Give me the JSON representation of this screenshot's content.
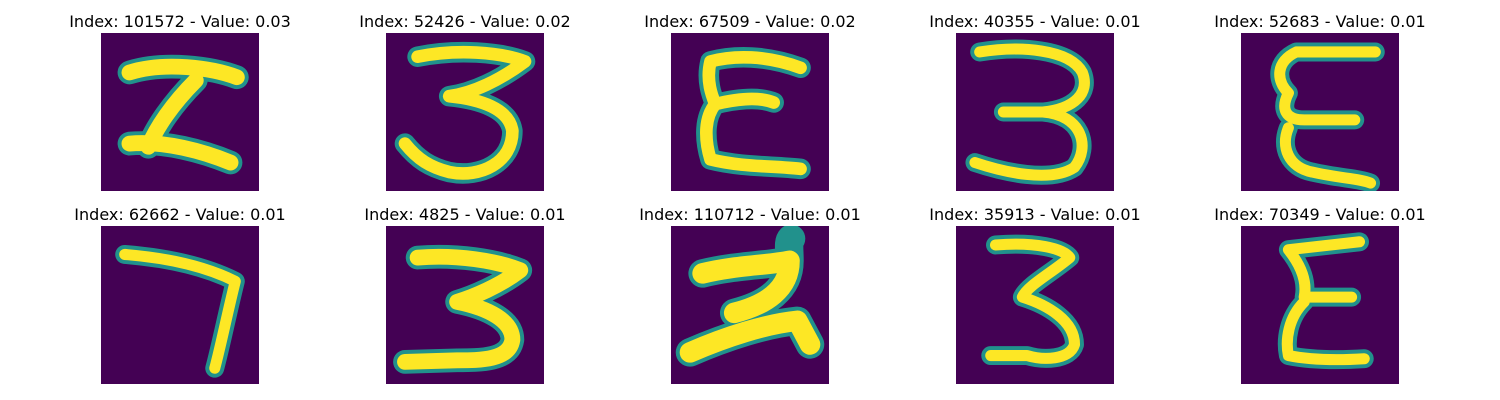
{
  "figure": {
    "colormap": "viridis",
    "background_color": "#440154",
    "stroke_color": "#fde725",
    "edge_color": "#21918c",
    "axes_visible": false
  },
  "panels": [
    {
      "title": "Index: 101572 - Value: 0.03",
      "index": 101572,
      "value": 0.03
    },
    {
      "title": "Index: 52426 - Value: 0.02",
      "index": 52426,
      "value": 0.02
    },
    {
      "title": "Index: 67509 - Value: 0.02",
      "index": 67509,
      "value": 0.02
    },
    {
      "title": "Index: 40355 - Value: 0.01",
      "index": 40355,
      "value": 0.01
    },
    {
      "title": "Index: 52683 - Value: 0.01",
      "index": 52683,
      "value": 0.01
    },
    {
      "title": "Index: 62662 - Value: 0.01",
      "index": 62662,
      "value": 0.01
    },
    {
      "title": "Index: 4825 - Value: 0.01",
      "index": 4825,
      "value": 0.01
    },
    {
      "title": "Index: 110712 - Value: 0.01",
      "index": 110712,
      "value": 0.01
    },
    {
      "title": "Index: 35913 - Value: 0.01",
      "index": 35913,
      "value": 0.01
    },
    {
      "title": "Index: 70349 - Value: 0.01",
      "index": 70349,
      "value": 0.01
    }
  ]
}
